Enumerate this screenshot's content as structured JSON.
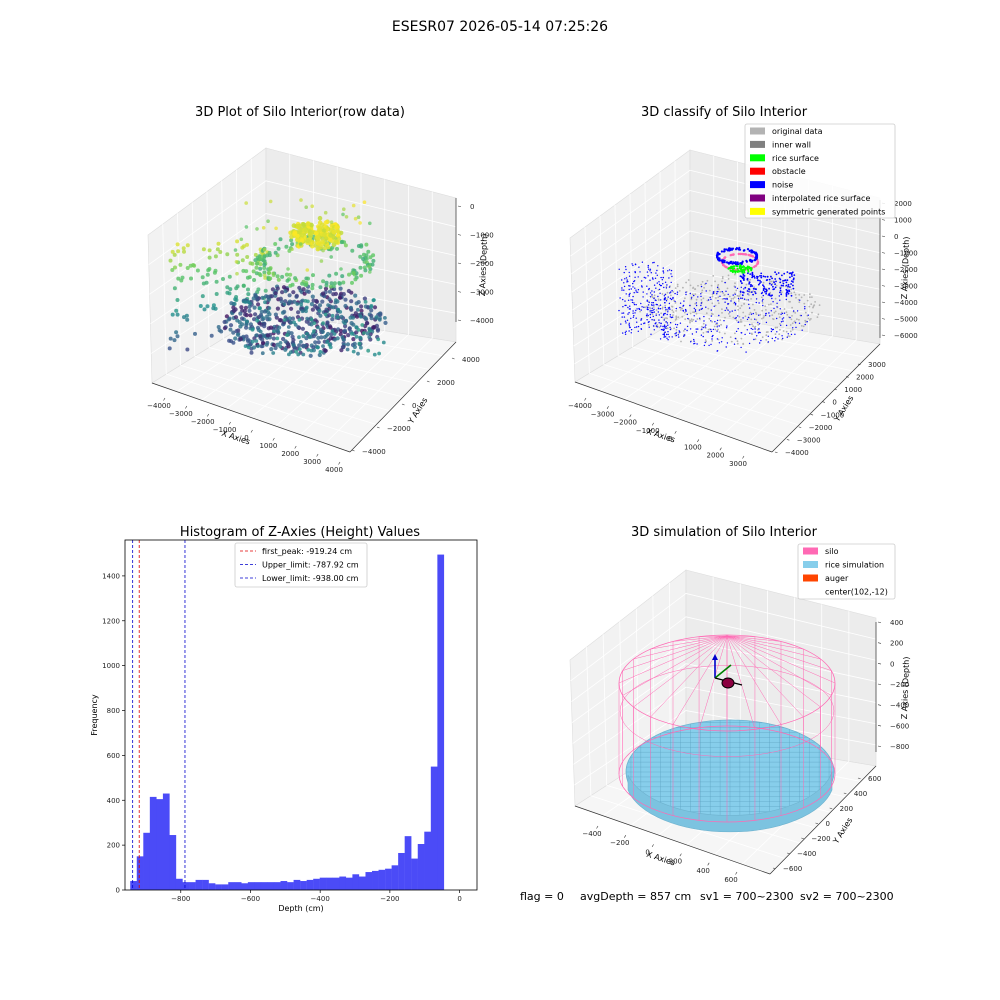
{
  "suptitle": "ESESR07 2026-05-14 07:25:26",
  "status_line": {
    "flag": "flag = 0",
    "avg_depth": "avgDepth = 857 cm",
    "sv1": "sv1 = 700~2300",
    "sv2": "sv2 = 700~2300"
  },
  "colors": {
    "hist_bar": "#4b4bf7",
    "first_peak_line": "#e00000",
    "limit_line": "#0000cc",
    "silo": "#ff69b4",
    "rice_simulation": "#87ceeb",
    "auger": "#ff4500",
    "original_data": "#b3b3b3",
    "inner_wall": "#808080",
    "rice_surface": "#00ff00",
    "obstacle": "#ff0000",
    "noise": "#0000ff",
    "interpolated_rice_surface": "#800080",
    "symmetric_generated_points": "#ffff00"
  },
  "chart_data": [
    {
      "id": "raw3d",
      "type": "scatter",
      "title": "3D Plot of Silo Interior(row data)",
      "xlabel": "X Axies",
      "ylabel": "Y Axies",
      "zlabel": "Z Axies (Depth)",
      "x_ticks": [
        "−4000",
        "−3000",
        "−2000",
        "−1000",
        "0",
        "1000",
        "2000",
        "3000",
        "4000"
      ],
      "y_ticks": [
        "−4000",
        "−2000",
        "0",
        "2000",
        "4000"
      ],
      "z_ticks": [
        "0",
        "−1000",
        "−2000",
        "−3000",
        "−4000"
      ],
      "xlim": [
        -4500,
        4000
      ],
      "ylim": [
        -4500,
        4500
      ],
      "zlim": [
        -4500,
        0
      ],
      "colormap": "viridis",
      "point_groups": [
        {
          "desc": "wall arc",
          "cx": -2700,
          "cy": 0,
          "radius": 1200,
          "z_top": -800,
          "z_bottom": -3800
        },
        {
          "desc": "bottom bowl",
          "cx": 0,
          "cy": 0,
          "radius": 2600,
          "z": -4200
        },
        {
          "desc": "top cone",
          "cx": 300,
          "cy": 500,
          "radius": 900,
          "z": -500
        }
      ]
    },
    {
      "id": "classify3d",
      "type": "scatter",
      "title": "3D classify of Silo Interior",
      "xlabel": "X Axies",
      "ylabel": "Y Axies",
      "zlabel": "Z Axies (Depth)",
      "x_ticks": [
        "−4000",
        "−3000",
        "−2000",
        "−1000",
        "0",
        "1000",
        "2000",
        "3000"
      ],
      "y_ticks": [
        "−4000",
        "−3000",
        "−2000",
        "−1000",
        "0",
        "1000",
        "2000",
        "3000"
      ],
      "z_ticks": [
        "2000",
        "1000",
        "0",
        "−1000",
        "−2000",
        "−3000",
        "−4000",
        "−5000",
        "−6000"
      ],
      "legend": [
        {
          "label": "original data",
          "color": "#b3b3b3"
        },
        {
          "label": "inner wall",
          "color": "#808080"
        },
        {
          "label": "rice surface",
          "color": "#00ff00"
        },
        {
          "label": "obstacle",
          "color": "#ff0000"
        },
        {
          "label": "noise",
          "color": "#0000ff"
        },
        {
          "label": "interpolated rice surface",
          "color": "#800080"
        },
        {
          "label": "symmetric generated points",
          "color": "#ffff00"
        }
      ],
      "legend_loc": "upper right"
    },
    {
      "id": "hist",
      "type": "bar",
      "title": "Histogram of Z-Axies (Height) Values",
      "xlabel": "Depth (cm)",
      "ylabel": "Frequency",
      "xlim": [
        -960,
        50
      ],
      "ylim": [
        0,
        1560
      ],
      "x_ticks": [
        -800,
        -600,
        -400,
        -200,
        0
      ],
      "y_ticks": [
        0,
        200,
        400,
        600,
        800,
        1000,
        1200,
        1400
      ],
      "bin_start": -945,
      "bin_width": 18.75,
      "values": [
        40,
        150,
        255,
        415,
        405,
        430,
        245,
        50,
        35,
        35,
        45,
        45,
        30,
        25,
        25,
        35,
        35,
        30,
        35,
        35,
        35,
        35,
        35,
        40,
        35,
        45,
        40,
        45,
        50,
        55,
        55,
        55,
        60,
        55,
        70,
        60,
        80,
        85,
        90,
        95,
        110,
        165,
        240,
        140,
        205,
        260,
        550,
        1495
      ],
      "lines": [
        {
          "label": "first_peak: -919.24 cm",
          "x": -919.24,
          "color": "#e00000"
        },
        {
          "label": "Upper_limit: -787.92 cm",
          "x": -787.92,
          "color": "#0000cc"
        },
        {
          "label": "Lower_limit: -938.00 cm",
          "x": -938.0,
          "color": "#0000cc"
        }
      ],
      "legend_loc": "upper center"
    },
    {
      "id": "sim3d",
      "type": "scatter",
      "title": "3D simulation of Silo Interior",
      "xlabel": "X Axies",
      "ylabel": "Y Axies",
      "zlabel": "Z Axies (Depth)",
      "x_ticks": [
        "−400",
        "−200",
        "0",
        "200",
        "400",
        "600"
      ],
      "y_ticks": [
        "−600",
        "−400",
        "−200",
        "0",
        "200",
        "400",
        "600"
      ],
      "z_ticks": [
        "400",
        "200",
        "0",
        "−200",
        "−400",
        "−600",
        "−800"
      ],
      "legend": [
        {
          "label": "silo",
          "color": "#ff69b4",
          "swatch": true
        },
        {
          "label": "rice simulation",
          "color": "#87ceeb",
          "swatch": true
        },
        {
          "label": "auger",
          "color": "#ff4500",
          "swatch": true
        },
        {
          "label": "center(102,-12)",
          "color": "",
          "swatch": false
        }
      ],
      "legend_loc": "upper right"
    }
  ]
}
